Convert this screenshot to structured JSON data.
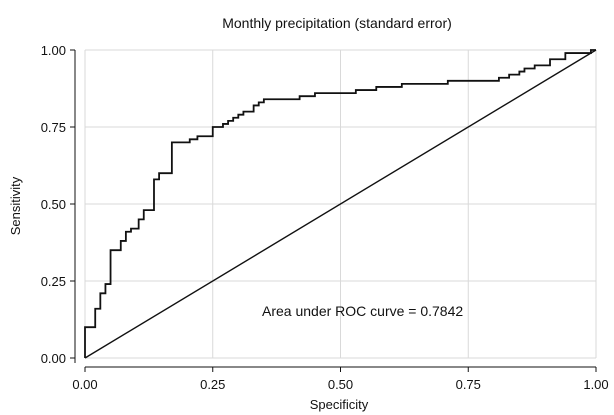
{
  "chart_data": {
    "type": "line",
    "title": "Monthly precipitation (standard error)",
    "xlabel": "Specificity",
    "ylabel": "Sensitivity",
    "xlim": [
      0,
      1
    ],
    "ylim": [
      0,
      1
    ],
    "x_ticks": [
      "0.00",
      "0.25",
      "0.50",
      "0.75",
      "1.00"
    ],
    "y_ticks": [
      "0.00",
      "0.25",
      "0.50",
      "0.75",
      "1.00"
    ],
    "grid": true,
    "annotation": "Area under ROC curve = 0.7842",
    "series": [
      {
        "values": [
          [
            0.0,
            0.0
          ],
          [
            0.0,
            0.1
          ],
          [
            0.02,
            0.1
          ],
          [
            0.02,
            0.16
          ],
          [
            0.03,
            0.16
          ],
          [
            0.03,
            0.21
          ],
          [
            0.04,
            0.21
          ],
          [
            0.04,
            0.24
          ],
          [
            0.05,
            0.24
          ],
          [
            0.05,
            0.35
          ],
          [
            0.07,
            0.35
          ],
          [
            0.07,
            0.38
          ],
          [
            0.08,
            0.38
          ],
          [
            0.08,
            0.41
          ],
          [
            0.09,
            0.41
          ],
          [
            0.09,
            0.42
          ],
          [
            0.105,
            0.42
          ],
          [
            0.105,
            0.45
          ],
          [
            0.115,
            0.45
          ],
          [
            0.115,
            0.48
          ],
          [
            0.135,
            0.48
          ],
          [
            0.135,
            0.58
          ],
          [
            0.145,
            0.58
          ],
          [
            0.145,
            0.6
          ],
          [
            0.17,
            0.6
          ],
          [
            0.17,
            0.7
          ],
          [
            0.205,
            0.7
          ],
          [
            0.205,
            0.71
          ],
          [
            0.22,
            0.71
          ],
          [
            0.22,
            0.72
          ],
          [
            0.25,
            0.72
          ],
          [
            0.25,
            0.75
          ],
          [
            0.27,
            0.75
          ],
          [
            0.27,
            0.76
          ],
          [
            0.28,
            0.76
          ],
          [
            0.28,
            0.77
          ],
          [
            0.29,
            0.77
          ],
          [
            0.29,
            0.78
          ],
          [
            0.3,
            0.78
          ],
          [
            0.3,
            0.79
          ],
          [
            0.31,
            0.79
          ],
          [
            0.31,
            0.8
          ],
          [
            0.33,
            0.8
          ],
          [
            0.33,
            0.82
          ],
          [
            0.34,
            0.82
          ],
          [
            0.34,
            0.83
          ],
          [
            0.35,
            0.83
          ],
          [
            0.35,
            0.84
          ],
          [
            0.42,
            0.84
          ],
          [
            0.42,
            0.85
          ],
          [
            0.45,
            0.85
          ],
          [
            0.45,
            0.86
          ],
          [
            0.53,
            0.86
          ],
          [
            0.53,
            0.87
          ],
          [
            0.57,
            0.87
          ],
          [
            0.57,
            0.88
          ],
          [
            0.62,
            0.88
          ],
          [
            0.62,
            0.89
          ],
          [
            0.71,
            0.89
          ],
          [
            0.71,
            0.9
          ],
          [
            0.81,
            0.9
          ],
          [
            0.81,
            0.91
          ],
          [
            0.83,
            0.91
          ],
          [
            0.83,
            0.92
          ],
          [
            0.85,
            0.92
          ],
          [
            0.85,
            0.93
          ],
          [
            0.86,
            0.93
          ],
          [
            0.86,
            0.94
          ],
          [
            0.88,
            0.94
          ],
          [
            0.88,
            0.95
          ],
          [
            0.91,
            0.95
          ],
          [
            0.91,
            0.97
          ],
          [
            0.94,
            0.97
          ],
          [
            0.94,
            0.99
          ],
          [
            0.99,
            0.99
          ],
          [
            0.99,
            1.0
          ],
          [
            1.0,
            1.0
          ]
        ]
      },
      {
        "values": [
          [
            0,
            0
          ],
          [
            1,
            1
          ]
        ]
      }
    ]
  }
}
